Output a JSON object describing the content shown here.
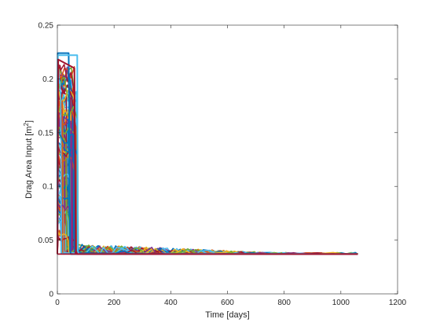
{
  "chart_data": {
    "type": "line",
    "title": "",
    "xlabel": "Time [days]",
    "ylabel_main": "Drag Area Input [m",
    "ylabel_sup": "2",
    "ylabel_close": "]",
    "xlim": [
      0,
      1200
    ],
    "ylim": [
      0,
      0.25
    ],
    "xticks": [
      0,
      200,
      400,
      600,
      800,
      1000,
      1200
    ],
    "yticks": [
      0,
      0.05,
      0.1,
      0.15,
      0.2,
      0.25
    ],
    "xtick_labels": [
      "0",
      "200",
      "400",
      "600",
      "800",
      "1000",
      "1200"
    ],
    "ytick_labels": [
      "0",
      "0.05",
      "0.1",
      "0.15",
      "0.2",
      "0.25"
    ],
    "grid": false,
    "legend": "none",
    "series_colors": [
      "#0072BD",
      "#D95319",
      "#EDB120",
      "#7E2F8E",
      "#77AC30",
      "#4DBEEE",
      "#A2142F"
    ],
    "baseline_value": 0.037,
    "series_summary": {
      "count_approx": "many overlapping series",
      "initial_plateau": 0.224,
      "drop_day_range": [
        10,
        75
      ],
      "settled_value": 0.037,
      "end_day": 1060
    },
    "highlight_series": [
      {
        "x": [
          0,
          1,
          40,
          45,
          48,
          1060
        ],
        "y": [
          0.037,
          0.224,
          0.224,
          0.04,
          0.037,
          0.037
        ]
      },
      {
        "x": [
          0,
          2,
          70,
          72,
          75,
          1060
        ],
        "y": [
          0.037,
          0.222,
          0.222,
          0.04,
          0.037,
          0.037
        ]
      },
      {
        "x": [
          0,
          3,
          60,
          65,
          70,
          1060
        ],
        "y": [
          0.037,
          0.218,
          0.21,
          0.04,
          0.037,
          0.037
        ]
      }
    ]
  }
}
